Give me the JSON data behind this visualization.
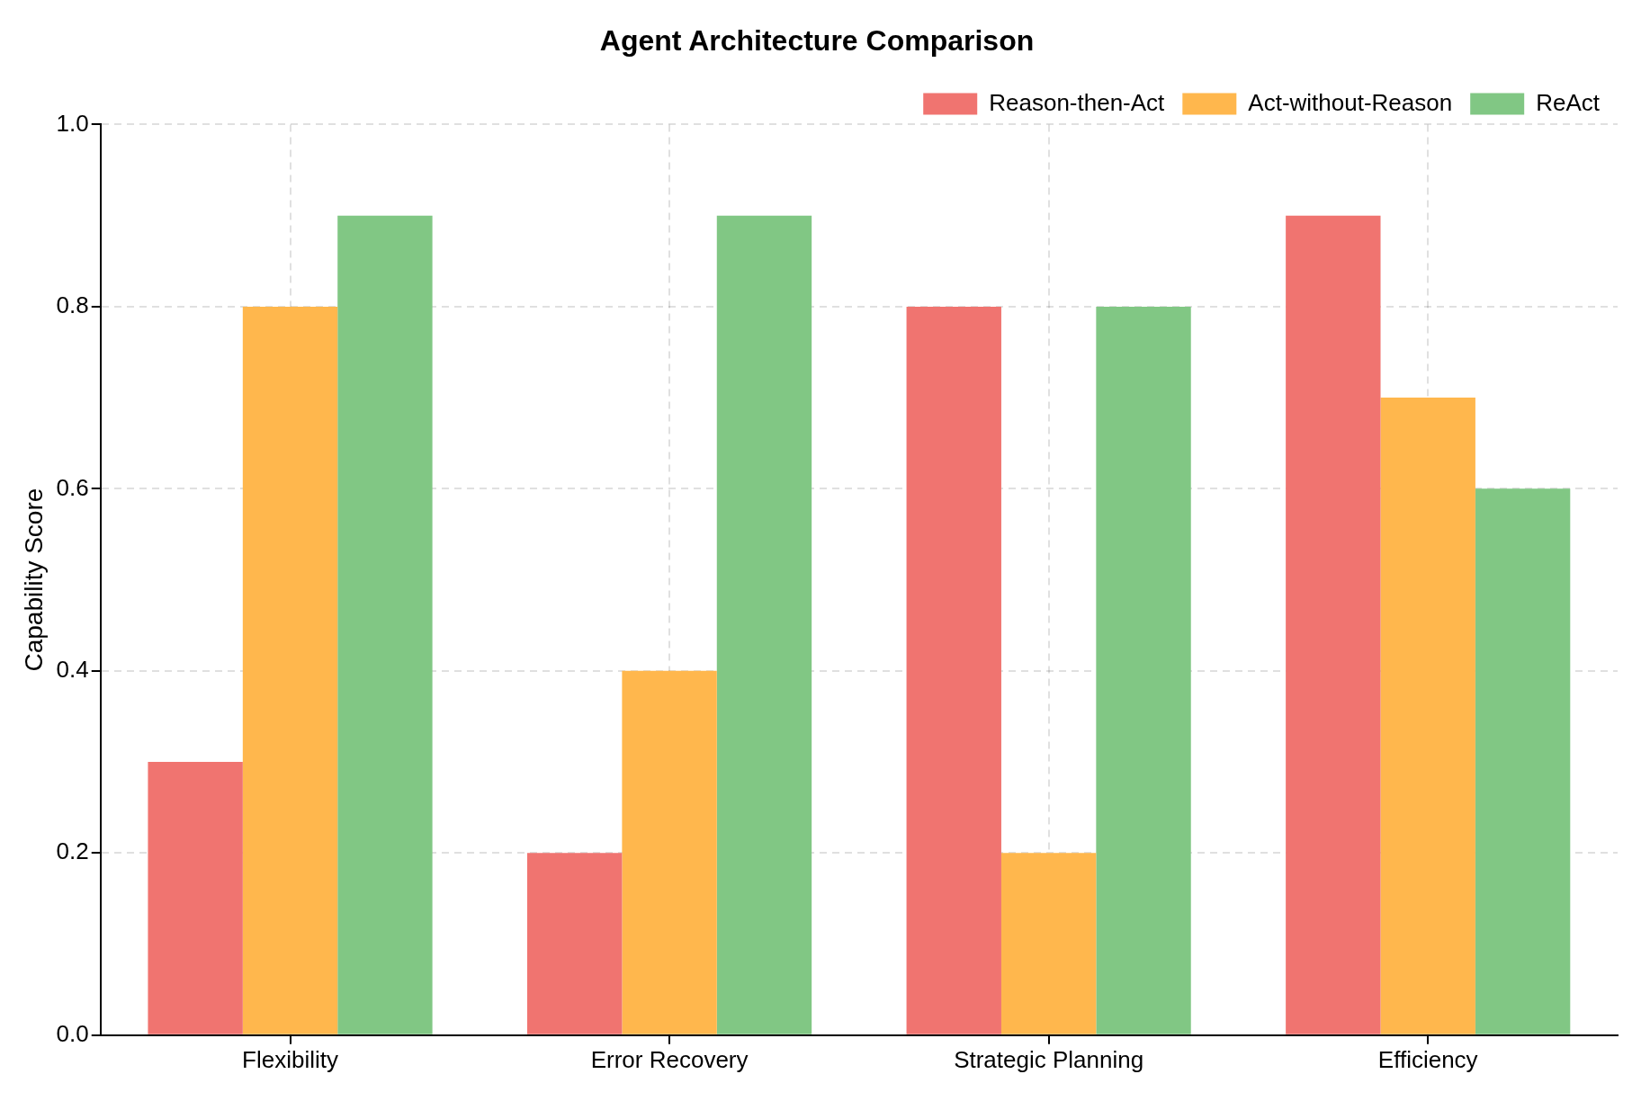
{
  "chart_data": {
    "type": "bar",
    "title": "Agent Architecture Comparison",
    "ylabel": "Capability Score",
    "categories": [
      "Flexibility",
      "Error Recovery",
      "Strategic Planning",
      "Efficiency"
    ],
    "series": [
      {
        "name": "Reason-then-Act",
        "color": "#f07470",
        "values": [
          0.3,
          0.2,
          0.8,
          0.9
        ]
      },
      {
        "name": "Act-without-Reason",
        "color": "#ffb74d",
        "values": [
          0.8,
          0.4,
          0.2,
          0.7
        ]
      },
      {
        "name": "ReAct",
        "color": "#81c784",
        "values": [
          0.9,
          0.9,
          0.8,
          0.6
        ]
      }
    ],
    "ylim": [
      0,
      1
    ],
    "yticks": [
      {
        "value": 0,
        "label": "0.0"
      },
      0.2,
      0.4,
      0.6,
      0.8,
      {
        "value": 1,
        "label": "1.0"
      }
    ],
    "grid": true,
    "legend": "top right"
  }
}
